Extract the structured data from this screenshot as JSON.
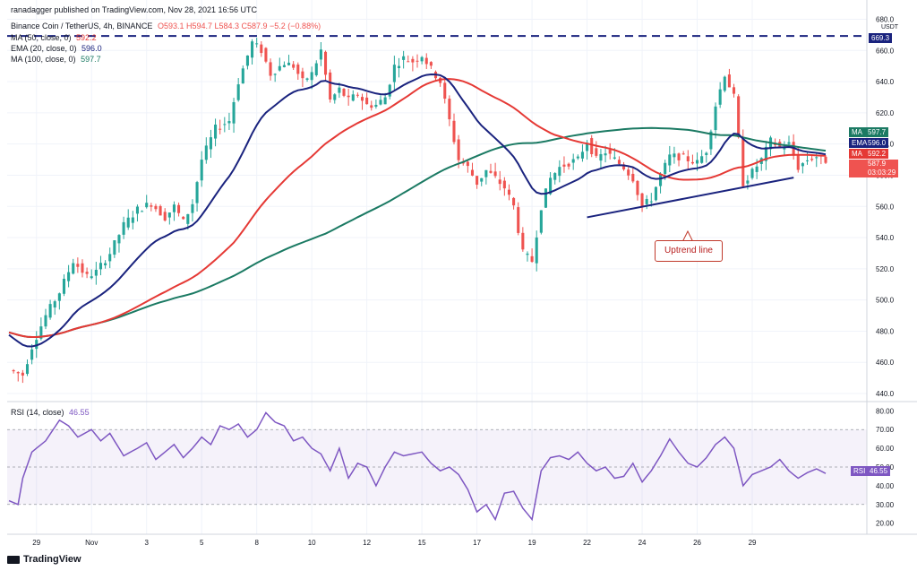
{
  "header": {
    "publisher_line": "ranadagger published on TradingView.com, Nov 28, 2021 16:56 UTC",
    "symbol": "Binance Coin / TetherUS, 4h, BINANCE",
    "ohlc": "O593.1 H594.7 L584.3 C587.9 −5.2 (−0.88%)",
    "indicators": [
      {
        "label": "MA (50, close, 0)",
        "value": "592.2",
        "color": "#e53935"
      },
      {
        "label": "EMA (20, close, 0)",
        "value": "596.0",
        "color": "#1a237e"
      },
      {
        "label": "MA (100, close, 0)",
        "value": "597.7",
        "color": "#1b7a63"
      }
    ]
  },
  "colors": {
    "up": "#26a69a",
    "down": "#ef5350",
    "ma50": "#e53935",
    "ema20": "#1a237e",
    "ma100": "#1b7a63",
    "rsi": "#7e57c2",
    "trend": "#1a237e",
    "resistance": "#1a237e"
  },
  "right_tags": [
    {
      "name": "MA",
      "value": "597.7",
      "color": "#1b7a63"
    },
    {
      "name": "EMA",
      "value": "596.0",
      "color": "#1a237e"
    },
    {
      "name": "MA",
      "value": "592.2",
      "color": "#e53935"
    },
    {
      "name": "",
      "value": "587.9",
      "sub": "03:03:29",
      "color": "#ef5350"
    }
  ],
  "resistance_tag": "669.3",
  "rsi_tag": {
    "name": "RSI",
    "value": "46.55"
  },
  "rsi_header": {
    "label": "RSI (14, close)",
    "value": "46.55"
  },
  "annotation": "Uptrend line",
  "currency": "USDT",
  "logo_text": "TradingView",
  "chart_data": {
    "type": "candlestick",
    "title": "Binance Coin / TetherUS, 4h, BINANCE",
    "price_axis": {
      "range": [
        436,
        682
      ],
      "ticks": [
        440,
        460,
        480,
        500,
        520,
        540,
        560,
        580,
        600,
        620,
        640,
        660,
        680
      ]
    },
    "time_axis": {
      "range": [
        0,
        168
      ],
      "ticks": [
        {
          "label": "29",
          "t": 6
        },
        {
          "label": "Nov",
          "t": 18
        },
        {
          "label": "3",
          "t": 30
        },
        {
          "label": "5",
          "t": 42
        },
        {
          "label": "8",
          "t": 54
        },
        {
          "label": "10",
          "t": 66
        },
        {
          "label": "12",
          "t": 78
        },
        {
          "label": "15",
          "t": 90
        },
        {
          "label": "17",
          "t": 102
        },
        {
          "label": "19",
          "t": 114
        },
        {
          "label": "22",
          "t": 126
        },
        {
          "label": "24",
          "t": 138
        },
        {
          "label": "26",
          "t": 150
        },
        {
          "label": "29",
          "t": 162
        }
      ]
    },
    "close_anchors": [
      [
        0,
        455
      ],
      [
        3,
        452
      ],
      [
        5,
        470
      ],
      [
        8,
        490
      ],
      [
        11,
        505
      ],
      [
        14,
        525
      ],
      [
        17,
        515
      ],
      [
        19,
        518
      ],
      [
        22,
        530
      ],
      [
        25,
        548
      ],
      [
        28,
        558
      ],
      [
        31,
        562
      ],
      [
        34,
        553
      ],
      [
        36,
        560
      ],
      [
        38,
        550
      ],
      [
        40,
        562
      ],
      [
        42,
        590
      ],
      [
        45,
        610
      ],
      [
        48,
        615
      ],
      [
        50,
        640
      ],
      [
        53,
        665
      ],
      [
        55,
        660
      ],
      [
        57,
        645
      ],
      [
        60,
        652
      ],
      [
        62,
        650
      ],
      [
        64,
        640
      ],
      [
        66,
        645
      ],
      [
        68,
        660
      ],
      [
        70,
        628
      ],
      [
        72,
        635
      ],
      [
        74,
        628
      ],
      [
        76,
        632
      ],
      [
        78,
        625
      ],
      [
        80,
        625
      ],
      [
        82,
        630
      ],
      [
        84,
        650
      ],
      [
        86,
        655
      ],
      [
        88,
        653
      ],
      [
        90,
        657
      ],
      [
        92,
        648
      ],
      [
        94,
        640
      ],
      [
        96,
        615
      ],
      [
        98,
        590
      ],
      [
        100,
        585
      ],
      [
        102,
        575
      ],
      [
        104,
        583
      ],
      [
        106,
        578
      ],
      [
        108,
        572
      ],
      [
        110,
        560
      ],
      [
        112,
        530
      ],
      [
        114,
        525
      ],
      [
        116,
        560
      ],
      [
        118,
        578
      ],
      [
        120,
        585
      ],
      [
        122,
        588
      ],
      [
        124,
        590
      ],
      [
        126,
        602
      ],
      [
        128,
        590
      ],
      [
        130,
        595
      ],
      [
        132,
        590
      ],
      [
        134,
        585
      ],
      [
        136,
        578
      ],
      [
        138,
        560
      ],
      [
        140,
        565
      ],
      [
        142,
        580
      ],
      [
        144,
        592
      ],
      [
        146,
        592
      ],
      [
        148,
        590
      ],
      [
        150,
        588
      ],
      [
        152,
        596
      ],
      [
        154,
        625
      ],
      [
        156,
        645
      ],
      [
        158,
        630
      ],
      [
        160,
        575
      ],
      [
        162,
        582
      ],
      [
        164,
        590
      ],
      [
        166,
        602
      ],
      [
        168,
        598
      ],
      [
        170,
        600
      ],
      [
        172,
        585
      ],
      [
        174,
        590
      ],
      [
        176,
        592
      ],
      [
        178,
        587.9
      ]
    ],
    "resistance_level": 669.3,
    "uptrend_line": [
      {
        "t": 126,
        "price": 553
      },
      {
        "t": 164,
        "price": 575
      }
    ],
    "series_latest": {
      "MA50": 592.2,
      "EMA20": 596.0,
      "MA100": 597.7,
      "close": 587.9
    },
    "rsi": {
      "period": 14,
      "latest": 46.55,
      "axis_ticks": [
        20,
        30,
        40,
        50,
        60,
        70,
        80
      ],
      "overbought": 70,
      "oversold": 30,
      "anchors": [
        [
          0,
          32
        ],
        [
          2,
          30
        ],
        [
          3,
          44
        ],
        [
          5,
          58
        ],
        [
          8,
          64
        ],
        [
          11,
          75
        ],
        [
          13,
          72
        ],
        [
          15,
          66
        ],
        [
          18,
          70
        ],
        [
          20,
          64
        ],
        [
          22,
          68
        ],
        [
          25,
          56
        ],
        [
          28,
          60
        ],
        [
          30,
          63
        ],
        [
          32,
          54
        ],
        [
          34,
          58
        ],
        [
          36,
          62
        ],
        [
          38,
          55
        ],
        [
          40,
          60
        ],
        [
          42,
          66
        ],
        [
          44,
          62
        ],
        [
          46,
          72
        ],
        [
          48,
          70
        ],
        [
          50,
          73
        ],
        [
          52,
          66
        ],
        [
          54,
          70
        ],
        [
          56,
          79
        ],
        [
          58,
          74
        ],
        [
          60,
          72
        ],
        [
          62,
          64
        ],
        [
          64,
          66
        ],
        [
          66,
          60
        ],
        [
          68,
          57
        ],
        [
          70,
          48
        ],
        [
          72,
          60
        ],
        [
          74,
          44
        ],
        [
          76,
          52
        ],
        [
          78,
          50
        ],
        [
          80,
          40
        ],
        [
          82,
          50
        ],
        [
          84,
          58
        ],
        [
          86,
          56
        ],
        [
          88,
          57
        ],
        [
          90,
          58
        ],
        [
          92,
          52
        ],
        [
          94,
          48
        ],
        [
          96,
          50
        ],
        [
          98,
          46
        ],
        [
          100,
          38
        ],
        [
          102,
          26
        ],
        [
          104,
          30
        ],
        [
          106,
          22
        ],
        [
          108,
          36
        ],
        [
          110,
          37
        ],
        [
          112,
          28
        ],
        [
          114,
          22
        ],
        [
          116,
          48
        ],
        [
          118,
          55
        ],
        [
          120,
          56
        ],
        [
          122,
          54
        ],
        [
          124,
          58
        ],
        [
          126,
          52
        ],
        [
          128,
          48
        ],
        [
          130,
          50
        ],
        [
          132,
          44
        ],
        [
          134,
          45
        ],
        [
          136,
          52
        ],
        [
          138,
          42
        ],
        [
          140,
          48
        ],
        [
          142,
          56
        ],
        [
          144,
          65
        ],
        [
          146,
          58
        ],
        [
          148,
          52
        ],
        [
          150,
          50
        ],
        [
          152,
          55
        ],
        [
          154,
          62
        ],
        [
          156,
          66
        ],
        [
          158,
          60
        ],
        [
          160,
          40
        ],
        [
          162,
          46
        ],
        [
          164,
          48
        ],
        [
          166,
          50
        ],
        [
          168,
          54
        ],
        [
          170,
          48
        ],
        [
          172,
          44
        ],
        [
          174,
          47
        ],
        [
          176,
          49
        ],
        [
          178,
          46.55
        ]
      ]
    }
  }
}
